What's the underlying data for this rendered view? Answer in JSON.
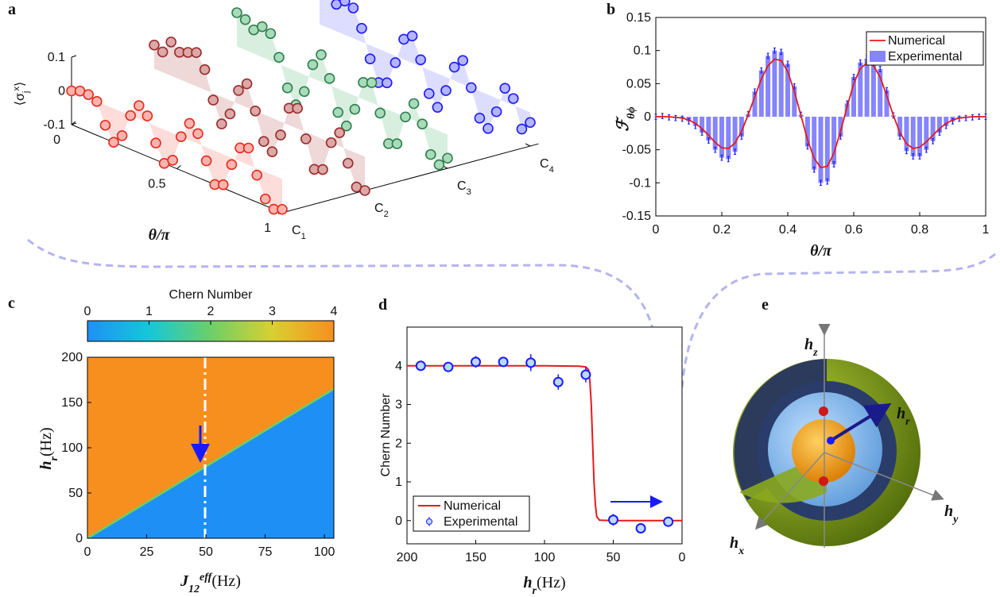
{
  "chart_data": [
    {
      "type": "waterfall3d",
      "label": "a",
      "zlabel": {
        "main": "⟨σ",
        "sub": "j",
        "sup": "x",
        "close": "⟩"
      },
      "xlabel": "θ/π",
      "xlim": [
        0,
        1
      ],
      "xticks": [
        0,
        0.5,
        1
      ],
      "zlim": [
        -0.1,
        0.1
      ],
      "zticks": [
        0.1,
        0,
        -0.1
      ],
      "categories": [
        {
          "main": "C",
          "sub": "1"
        },
        {
          "main": "C",
          "sub": "2"
        },
        {
          "main": "C",
          "sub": "3"
        },
        {
          "main": "C",
          "sub": "4"
        }
      ],
      "x": [
        0,
        0.04,
        0.08,
        0.12,
        0.16,
        0.2,
        0.24,
        0.28,
        0.32,
        0.36,
        0.4,
        0.44,
        0.48,
        0.52,
        0.56,
        0.6,
        0.64,
        0.68,
        0.72,
        0.76,
        0.8,
        0.84,
        0.88,
        0.92,
        0.96,
        1
      ],
      "series": [
        {
          "color": "#e8291c",
          "fill": "#f8b4ae",
          "values": [
            0.0,
            0.01,
            0.01,
            0.0,
            -0.06,
            -0.1,
            -0.07,
            0.0,
            0.04,
            0.02,
            -0.05,
            -0.1,
            -0.08,
            0.0,
            0.05,
            0.03,
            -0.04,
            -0.1,
            -0.09,
            -0.02,
            0.04,
            0.05,
            -0.02,
            -0.08,
            -0.1,
            -0.09
          ]
        },
        {
          "color": "#9a2a2a",
          "fill": "#dca8a8",
          "values": [
            0.07,
            0.06,
            0.1,
            0.08,
            0.09,
            0.1,
            0.06,
            -0.02,
            -0.08,
            -0.04,
            0.04,
            0.07,
            0.0,
            -0.08,
            -0.1,
            -0.04,
            0.05,
            0.06,
            -0.02,
            -0.1,
            -0.09,
            0.0,
            0.04,
            -0.04,
            -0.1,
            -0.1
          ]
        },
        {
          "color": "#2e7d4f",
          "fill": "#a8dcb8",
          "values": [
            0.1,
            0.09,
            0.07,
            0.09,
            0.08,
            0.02,
            -0.06,
            -0.1,
            -0.05,
            0.04,
            0.08,
            0.02,
            -0.07,
            -0.1,
            -0.04,
            0.05,
            0.06,
            -0.02,
            -0.1,
            -0.09,
            0.0,
            0.05,
            0.0,
            -0.08,
            -0.1,
            -0.07
          ]
        },
        {
          "color": "#1a1aff",
          "fill": "#b4b4ff",
          "values": [
            0.1,
            0.1,
            0.08,
            0.1,
            0.09,
            0.04,
            -0.04,
            -0.1,
            -0.09,
            -0.02,
            0.06,
            0.08,
            0.02,
            -0.07,
            -0.1,
            -0.04,
            0.04,
            0.07,
            0.0,
            -0.08,
            -0.1,
            -0.04,
            0.04,
            0.02,
            -0.06,
            -0.03
          ]
        }
      ]
    },
    {
      "type": "bar_line",
      "label": "b",
      "ylabel": {
        "main": "ℱ",
        "sub": "θϕ"
      },
      "xlabel": "θ/π",
      "xlim": [
        0,
        1
      ],
      "xticks": [
        0,
        0.2,
        0.4,
        0.6,
        0.8,
        1
      ],
      "ylim": [
        -0.15,
        0.15
      ],
      "yticks": [
        -0.15,
        -0.1,
        -0.05,
        0,
        0.05,
        0.1,
        0.15
      ],
      "legend": "top-right",
      "x": [
        0,
        0.02,
        0.04,
        0.06,
        0.08,
        0.1,
        0.12,
        0.14,
        0.16,
        0.18,
        0.2,
        0.22,
        0.24,
        0.26,
        0.28,
        0.3,
        0.32,
        0.34,
        0.36,
        0.38,
        0.4,
        0.42,
        0.44,
        0.46,
        0.48,
        0.5,
        0.52,
        0.54,
        0.56,
        0.58,
        0.6,
        0.62,
        0.64,
        0.66,
        0.68,
        0.7,
        0.72,
        0.74,
        0.76,
        0.78,
        0.8,
        0.82,
        0.84,
        0.86,
        0.88,
        0.9,
        0.92,
        0.94,
        0.96,
        0.98,
        1
      ],
      "series": [
        {
          "name": "Numerical",
          "type": "line",
          "color": "#e8191c",
          "values": [
            0,
            0,
            0,
            -0.001,
            -0.002,
            -0.005,
            -0.01,
            -0.018,
            -0.028,
            -0.039,
            -0.047,
            -0.048,
            -0.04,
            -0.022,
            0.003,
            0.03,
            0.057,
            0.077,
            0.087,
            0.085,
            0.068,
            0.038,
            0.002,
            -0.035,
            -0.063,
            -0.077,
            -0.075,
            -0.055,
            -0.022,
            0.015,
            0.05,
            0.073,
            0.081,
            0.077,
            0.06,
            0.032,
            0.002,
            -0.024,
            -0.041,
            -0.048,
            -0.046,
            -0.038,
            -0.028,
            -0.018,
            -0.01,
            -0.005,
            -0.002,
            -0.001,
            0,
            0,
            0
          ]
        },
        {
          "name": "Experimental",
          "type": "bar",
          "color": "#8585ff",
          "error_color": "#1a1aff",
          "error": 0.004,
          "values": [
            0,
            0.001,
            -0.001,
            -0.002,
            -0.003,
            -0.007,
            -0.014,
            -0.024,
            -0.036,
            -0.05,
            -0.062,
            -0.064,
            -0.053,
            -0.03,
            0.004,
            0.038,
            0.07,
            0.092,
            0.1,
            0.098,
            0.08,
            0.046,
            0.003,
            -0.045,
            -0.08,
            -0.1,
            -0.098,
            -0.072,
            -0.03,
            0.02,
            0.06,
            0.082,
            0.088,
            0.086,
            0.072,
            0.04,
            0.002,
            -0.03,
            -0.052,
            -0.06,
            -0.06,
            -0.05,
            -0.037,
            -0.024,
            -0.014,
            -0.007,
            -0.003,
            -0.002,
            -0.001,
            0,
            0
          ]
        }
      ]
    },
    {
      "type": "phase_map",
      "label": "c",
      "colorbar_label": "Chern Number",
      "clim": [
        0,
        4
      ],
      "cticks": [
        0,
        1,
        2,
        3,
        4
      ],
      "colormap": [
        "#1e90f5",
        "#14c8d8",
        "#6ccf68",
        "#d8d030",
        "#f78f1e"
      ],
      "ylabel": {
        "main": "h",
        "sub": "r",
        "unit": "(Hz)"
      },
      "xlabel": {
        "main": "J",
        "sub": "12",
        "sup": "eff",
        "unit": "(Hz)"
      },
      "xlim": [
        0,
        104
      ],
      "xticks": [
        0,
        25,
        50,
        75,
        100
      ],
      "ylim": [
        0,
        200
      ],
      "yticks": [
        0,
        50,
        100,
        150,
        200
      ],
      "boundary": {
        "x": [
          0,
          104
        ],
        "y": [
          0,
          165
        ]
      },
      "above_value": 4,
      "below_value": 0
    },
    {
      "type": "line_errorbar",
      "label": "d",
      "ylabel": "Chern Number",
      "xlabel": {
        "main": "h",
        "sub": "r",
        "unit": "(Hz)"
      },
      "xlim": [
        200,
        0
      ],
      "xticks": [
        200,
        150,
        100,
        50,
        0
      ],
      "ylim": [
        -0.6,
        5
      ],
      "yticks": [
        0,
        1,
        2,
        3,
        4
      ],
      "legend": "bottom-left",
      "series": [
        {
          "name": "Numerical",
          "type": "line",
          "color": "#e8191c",
          "x": [
            200,
            100,
            75,
            70,
            68,
            67,
            66,
            65,
            64,
            63,
            62,
            60,
            50,
            0
          ],
          "values": [
            4,
            4,
            3.99,
            3.97,
            3.9,
            3.6,
            3,
            2,
            1,
            0.4,
            0.1,
            0.01,
            0,
            0
          ]
        },
        {
          "name": "Experimental",
          "type": "errorbar",
          "color": "#1a1aff",
          "x": [
            190,
            170,
            150,
            130,
            110,
            90,
            70,
            50,
            30,
            10
          ],
          "values": [
            4,
            3.97,
            4.1,
            4.1,
            4.08,
            3.58,
            3.77,
            0.02,
            -0.2,
            -0.03
          ],
          "errors": [
            0.05,
            0.05,
            0.15,
            0.12,
            0.22,
            0.2,
            0.2,
            0.15,
            0.05,
            0.05
          ]
        }
      ]
    },
    {
      "type": "illustration",
      "label": "e",
      "axis_labels": [
        {
          "main": "h",
          "sub": "z"
        },
        {
          "main": "h",
          "sub": "r"
        },
        {
          "main": "h",
          "sub": "y"
        },
        {
          "main": "h",
          "sub": "x"
        }
      ]
    }
  ]
}
